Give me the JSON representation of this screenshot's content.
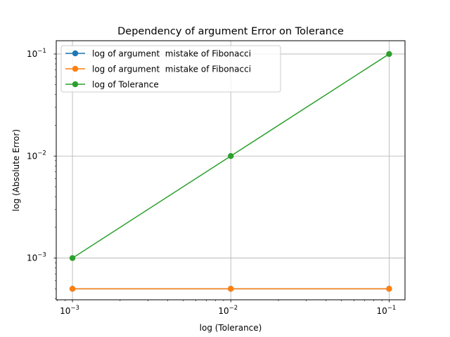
{
  "chart_data": {
    "type": "line",
    "title": "Dependency of argument Error on Tolerance",
    "xlabel": "log (Tolerance)",
    "ylabel": "log (Absolute Error)",
    "xscale": "log",
    "yscale": "log",
    "xlim": [
      0.00079,
      0.126
    ],
    "ylim": [
      0.00039,
      0.135
    ],
    "x_ticks": [
      {
        "value": 0.001,
        "base": "10",
        "exp": "−3"
      },
      {
        "value": 0.01,
        "base": "10",
        "exp": "−2"
      },
      {
        "value": 0.1,
        "base": "10",
        "exp": "−1"
      }
    ],
    "y_ticks": [
      {
        "value": 0.001,
        "base": "10",
        "exp": "−3"
      },
      {
        "value": 0.01,
        "base": "10",
        "exp": "−2"
      },
      {
        "value": 0.1,
        "base": "10",
        "exp": "−1"
      }
    ],
    "grid": true,
    "legend_position": "top-left",
    "x": [
      0.001,
      0.01,
      0.1
    ],
    "series": [
      {
        "name": "log of argument  mistake of Fibonacci",
        "color": "#1f77b4",
        "values": [
          0.0005,
          0.0005,
          0.0005
        ]
      },
      {
        "name": "log of argument  mistake of Fibonacci",
        "color": "#ff7f0e",
        "values": [
          0.0005,
          0.0005,
          0.0005
        ]
      },
      {
        "name": "log of Tolerance",
        "color": "#2ca02c",
        "values": [
          0.001,
          0.01,
          0.1
        ]
      }
    ]
  }
}
